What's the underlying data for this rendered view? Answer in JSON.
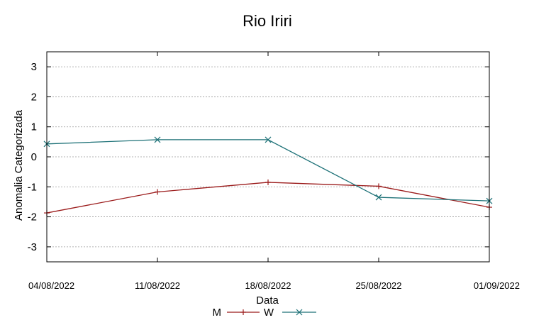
{
  "chart_data": {
    "type": "line",
    "title": "Rio Iriri",
    "xlabel": "Data",
    "ylabel": "Anomalia Categorizada",
    "categories": [
      "04/08/2022",
      "11/08/2022",
      "18/08/2022",
      "25/08/2022",
      "01/09/2022"
    ],
    "yticks": [
      "3",
      "2",
      "1",
      "0",
      "-1",
      "-2",
      "-3"
    ],
    "ylim": [
      -3.5,
      3.5
    ],
    "grid": "horizontal-dashed",
    "legend_position": "bottom-center",
    "series": [
      {
        "name": "M",
        "marker": "plus",
        "color": "#9b1b1b",
        "values": [
          -1.87,
          -1.17,
          -0.85,
          -0.98,
          -1.68
        ]
      },
      {
        "name": "W",
        "marker": "x",
        "color": "#1d7177",
        "values": [
          0.43,
          0.57,
          0.57,
          -1.35,
          -1.47
        ]
      }
    ]
  }
}
